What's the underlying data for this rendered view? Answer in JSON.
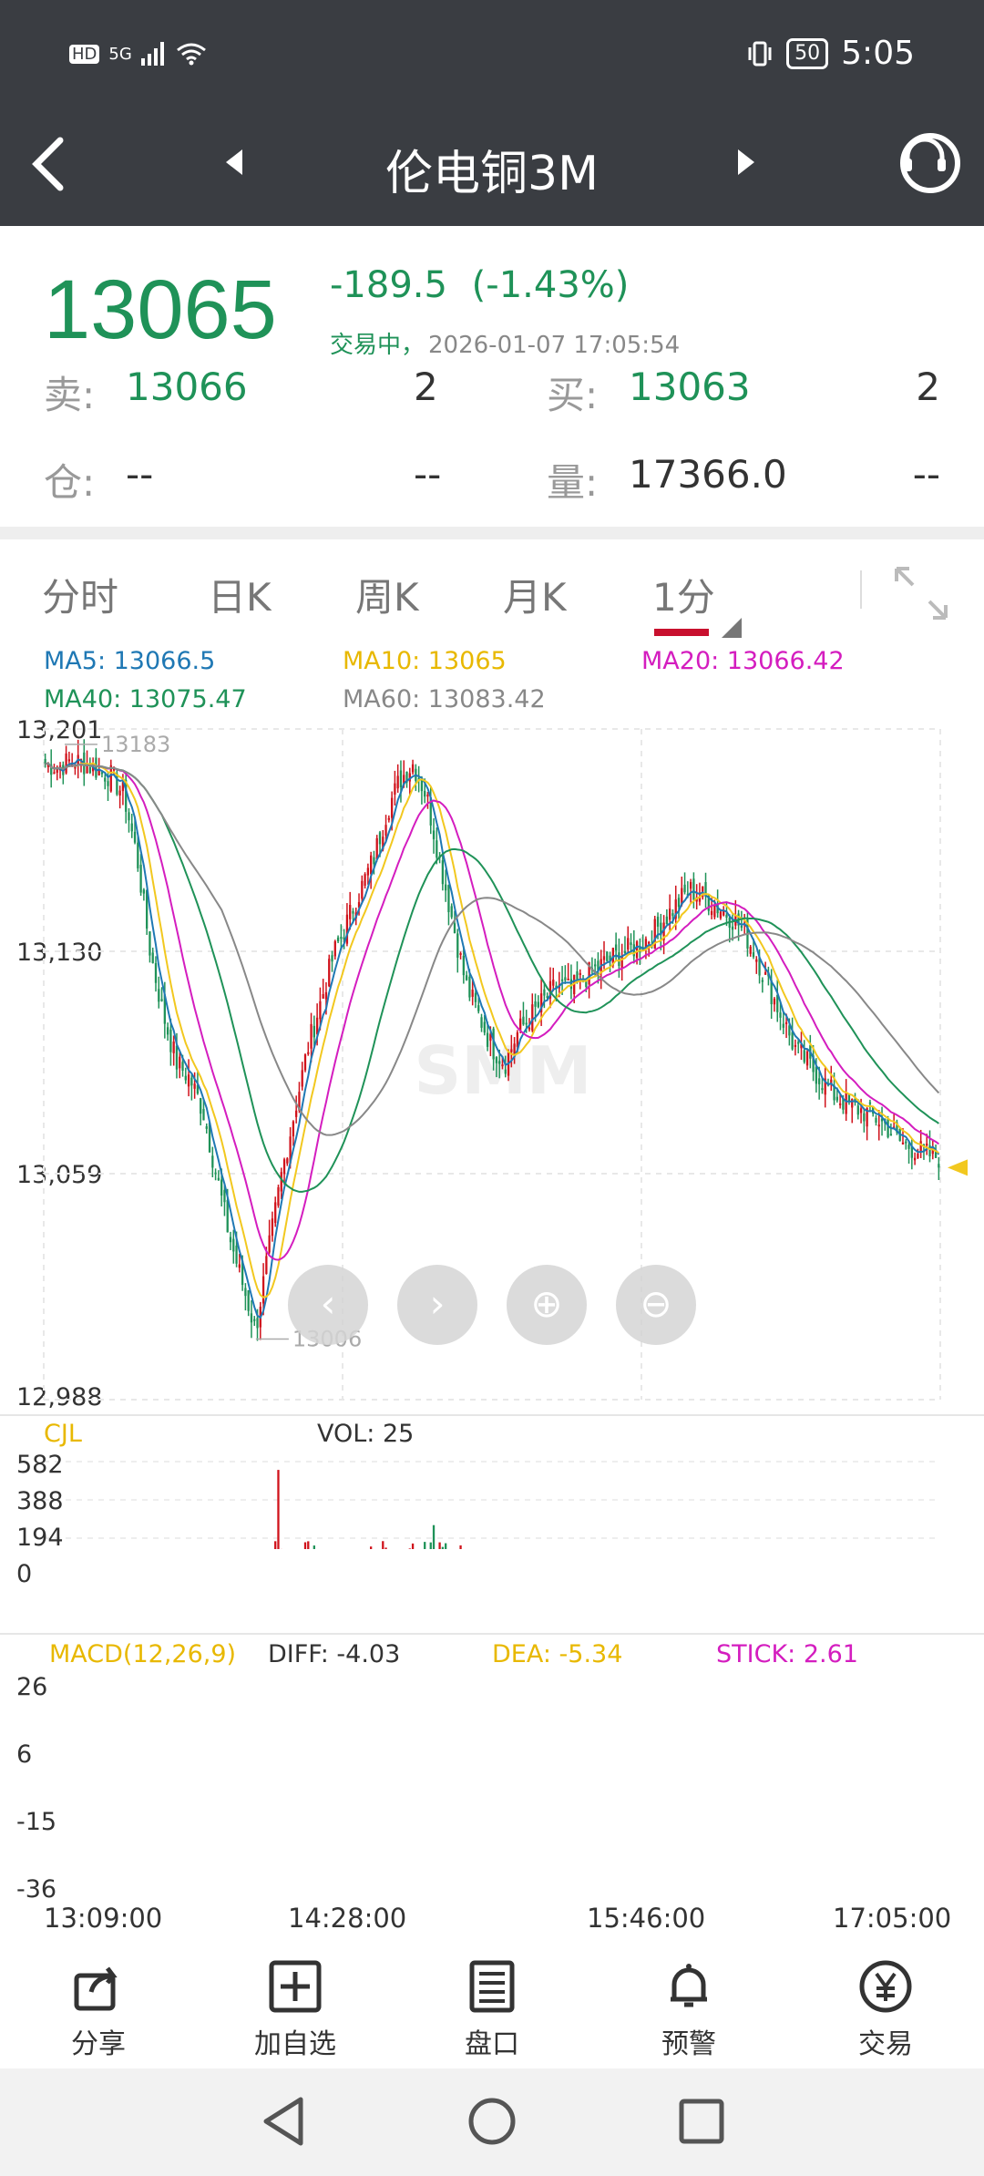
{
  "status_bar": {
    "network_badge": "HD",
    "signal": "5G",
    "time": "5:05",
    "battery": "50",
    "icons": [
      "hd-icon",
      "signal-icon",
      "wifi-icon",
      "vibrate-icon",
      "battery-icon"
    ]
  },
  "nav": {
    "title": "伦电铜3M",
    "back_icon": "back-arrow-icon",
    "prev_icon": "prev-triangle-icon",
    "next_icon": "next-triangle-icon",
    "service_icon": "customer-service-icon"
  },
  "quote": {
    "price": "13065",
    "change": "-189.5",
    "change_pct": "(-1.43%)",
    "status": "交易中，",
    "time": "2026-01-07 17:05:54",
    "sell_label": "卖:",
    "sell_price": "13066",
    "sell_qty": "2",
    "buy_label": "买:",
    "buy_price": "13063",
    "buy_qty": "2",
    "oi_label": "仓:",
    "oi_value": "--",
    "oi_change": "--",
    "vol_label": "量:",
    "vol_value": "17366.0",
    "vol_change": "--"
  },
  "tabs": [
    {
      "label": "分时"
    },
    {
      "label": "日K"
    },
    {
      "label": "周K"
    },
    {
      "label": "月K"
    },
    {
      "label": "1分",
      "active": true
    }
  ],
  "ma": {
    "ma5": "MA5: 13066.5",
    "ma10": "MA10: 13065",
    "ma20": "MA20: 13066.42",
    "ma40": "MA40: 13075.47",
    "ma60": "MA60: 13083.42",
    "colors": {
      "ma5": "#1f78b4",
      "ma10": "#f2c81f",
      "ma20": "#d41dbf",
      "ma40": "#1f9258",
      "ma60": "#888888"
    }
  },
  "price_axis": [
    "13,201",
    "13,130",
    "13,059",
    "12,988"
  ],
  "price_annotations": {
    "high": "13183",
    "low": "13006"
  },
  "volume": {
    "title": "CJL",
    "vol_text": "VOL: 25",
    "axis": [
      "582",
      "388",
      "194",
      "0"
    ]
  },
  "macd": {
    "title": "MACD(12,26,9)",
    "diff": "DIFF: -4.03",
    "dea": "DEA: -5.34",
    "stick": "STICK: 2.61",
    "axis": [
      "26",
      "6",
      "-15",
      "-36"
    ]
  },
  "time_axis": [
    "13:09:00",
    "14:28:00",
    "15:46:00",
    "17:05:00"
  ],
  "chart_data": {
    "type": "candlestick",
    "ylim": [
      12988,
      13201
    ],
    "x_ticks": [
      "13:09:00",
      "14:28:00",
      "15:46:00",
      "17:05:00"
    ],
    "y_ticks": [
      13201,
      13130,
      13059,
      12988
    ],
    "close_path": [
      13190,
      13189,
      13191,
      13190,
      13188,
      13186,
      13180,
      13160,
      13130,
      13110,
      13095,
      13090,
      13080,
      13060,
      13040,
      13025,
      13010,
      13035,
      13060,
      13080,
      13100,
      13115,
      13130,
      13140,
      13150,
      13160,
      13175,
      13185,
      13190,
      13180,
      13160,
      13140,
      13120,
      13110,
      13100,
      13095,
      13105,
      13110,
      13115,
      13120,
      13118,
      13122,
      13125,
      13128,
      13130,
      13132,
      13135,
      13140,
      13145,
      13150,
      13148,
      13145,
      13142,
      13138,
      13130,
      13120,
      13110,
      13100,
      13095,
      13090,
      13085,
      13082,
      13080,
      13078,
      13075,
      13070,
      13068,
      13066,
      13065
    ],
    "volume_ylim": [
      0,
      582
    ],
    "macd_ylim": [
      -36,
      26
    ]
  },
  "toolbar": [
    {
      "label": "分享",
      "icon": "share-icon"
    },
    {
      "label": "加自选",
      "icon": "add-watchlist-icon"
    },
    {
      "label": "盘口",
      "icon": "orderbook-icon"
    },
    {
      "label": "预警",
      "icon": "bell-icon"
    },
    {
      "label": "交易",
      "icon": "trade-yen-icon"
    }
  ],
  "chart_controls": [
    "left-arrow-icon",
    "right-arrow-icon",
    "zoom-in-icon",
    "zoom-out-icon"
  ],
  "watermark": "SMM"
}
